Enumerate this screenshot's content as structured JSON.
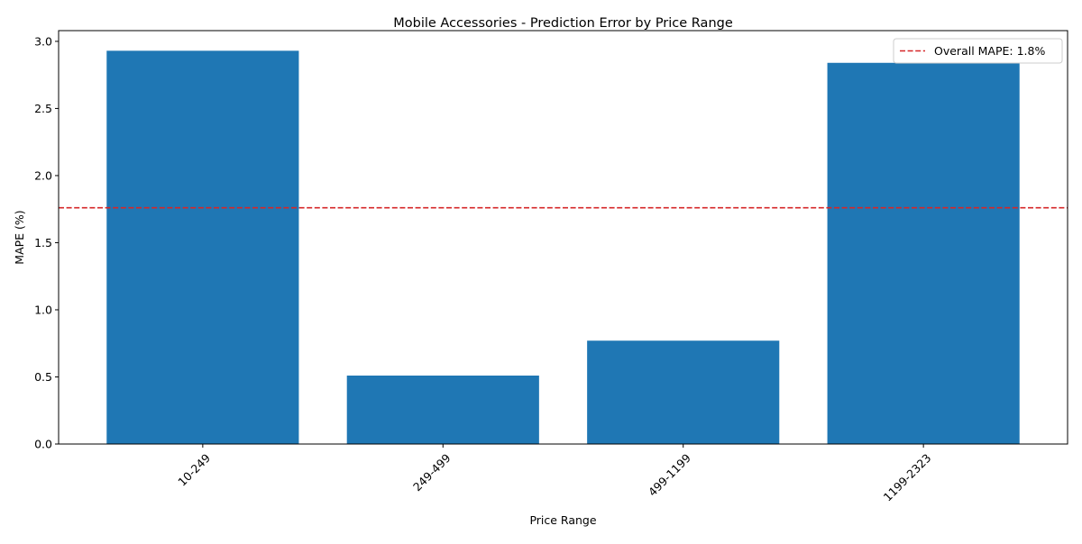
{
  "chart_data": {
    "type": "bar",
    "title": "Mobile Accessories - Prediction Error by Price Range",
    "xlabel": "Price Range",
    "ylabel": "MAPE (%)",
    "categories": [
      "10-249",
      "249-499",
      "499-1199",
      "1199-2323"
    ],
    "values": [
      2.93,
      0.51,
      0.77,
      2.84
    ],
    "ylim": [
      0.0,
      3.08
    ],
    "yticks": [
      0.0,
      0.5,
      1.0,
      1.5,
      2.0,
      2.5,
      3.0
    ],
    "ytick_labels": [
      "0.0",
      "0.5",
      "1.0",
      "1.5",
      "2.0",
      "2.5",
      "3.0"
    ],
    "xtick_rotation": 45,
    "bar_color": "#1f77b4",
    "reference_line": {
      "value": 1.76,
      "label": "Overall MAPE: 1.8%",
      "color": "#d62728",
      "style": "dashed"
    },
    "legend": {
      "position": "top-right",
      "entries": [
        "Overall MAPE: 1.8%"
      ]
    },
    "grid": false
  }
}
